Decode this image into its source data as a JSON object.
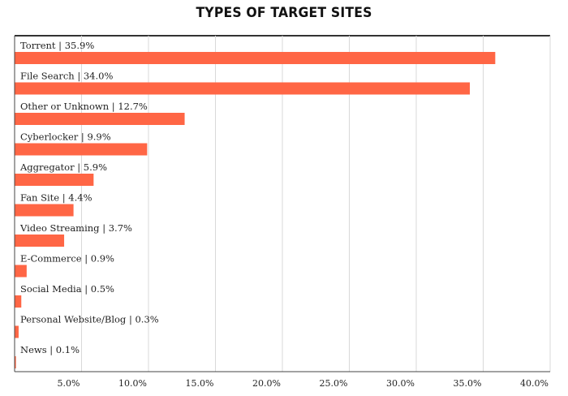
{
  "chart_data": {
    "type": "bar",
    "orientation": "horizontal",
    "title": "TYPES OF TARGET SITES",
    "xlabel": "",
    "ylabel": "",
    "xlim": [
      0,
      40
    ],
    "x_ticks": [
      "5.0%",
      "10.0%",
      "15.0%",
      "20.0%",
      "25.0%",
      "30.0%",
      "35.0%",
      "40.0%"
    ],
    "x_tick_values": [
      5,
      10,
      15,
      20,
      25,
      30,
      35,
      40
    ],
    "grid": true,
    "legend": "none",
    "bar_color": "#ff6645",
    "categories": [
      {
        "name": "Torrent",
        "label": "Torrent | 35.9%",
        "value": 35.9
      },
      {
        "name": "File Search",
        "label": "File Search | 34.0%",
        "value": 34.0
      },
      {
        "name": "Other or Unknown",
        "label": "Other or Unknown | 12.7%",
        "value": 12.7
      },
      {
        "name": "Cyberlocker",
        "label": "Cyberlocker | 9.9%",
        "value": 9.9
      },
      {
        "name": "Aggregator",
        "label": "Aggregator | 5.9%",
        "value": 5.9
      },
      {
        "name": "Fan Site",
        "label": "Fan Site | 4.4%",
        "value": 4.4
      },
      {
        "name": "Video Streaming",
        "label": "Video Streaming | 3.7%",
        "value": 3.7
      },
      {
        "name": "E-Commerce",
        "label": "E-Commerce | 0.9%",
        "value": 0.9
      },
      {
        "name": "Social Media",
        "label": "Social Media | 0.5%",
        "value": 0.5
      },
      {
        "name": "Personal Website/Blog",
        "label": "Personal Website/Blog | 0.3%",
        "value": 0.3
      },
      {
        "name": "News",
        "label": "News | 0.1%",
        "value": 0.1
      }
    ]
  }
}
